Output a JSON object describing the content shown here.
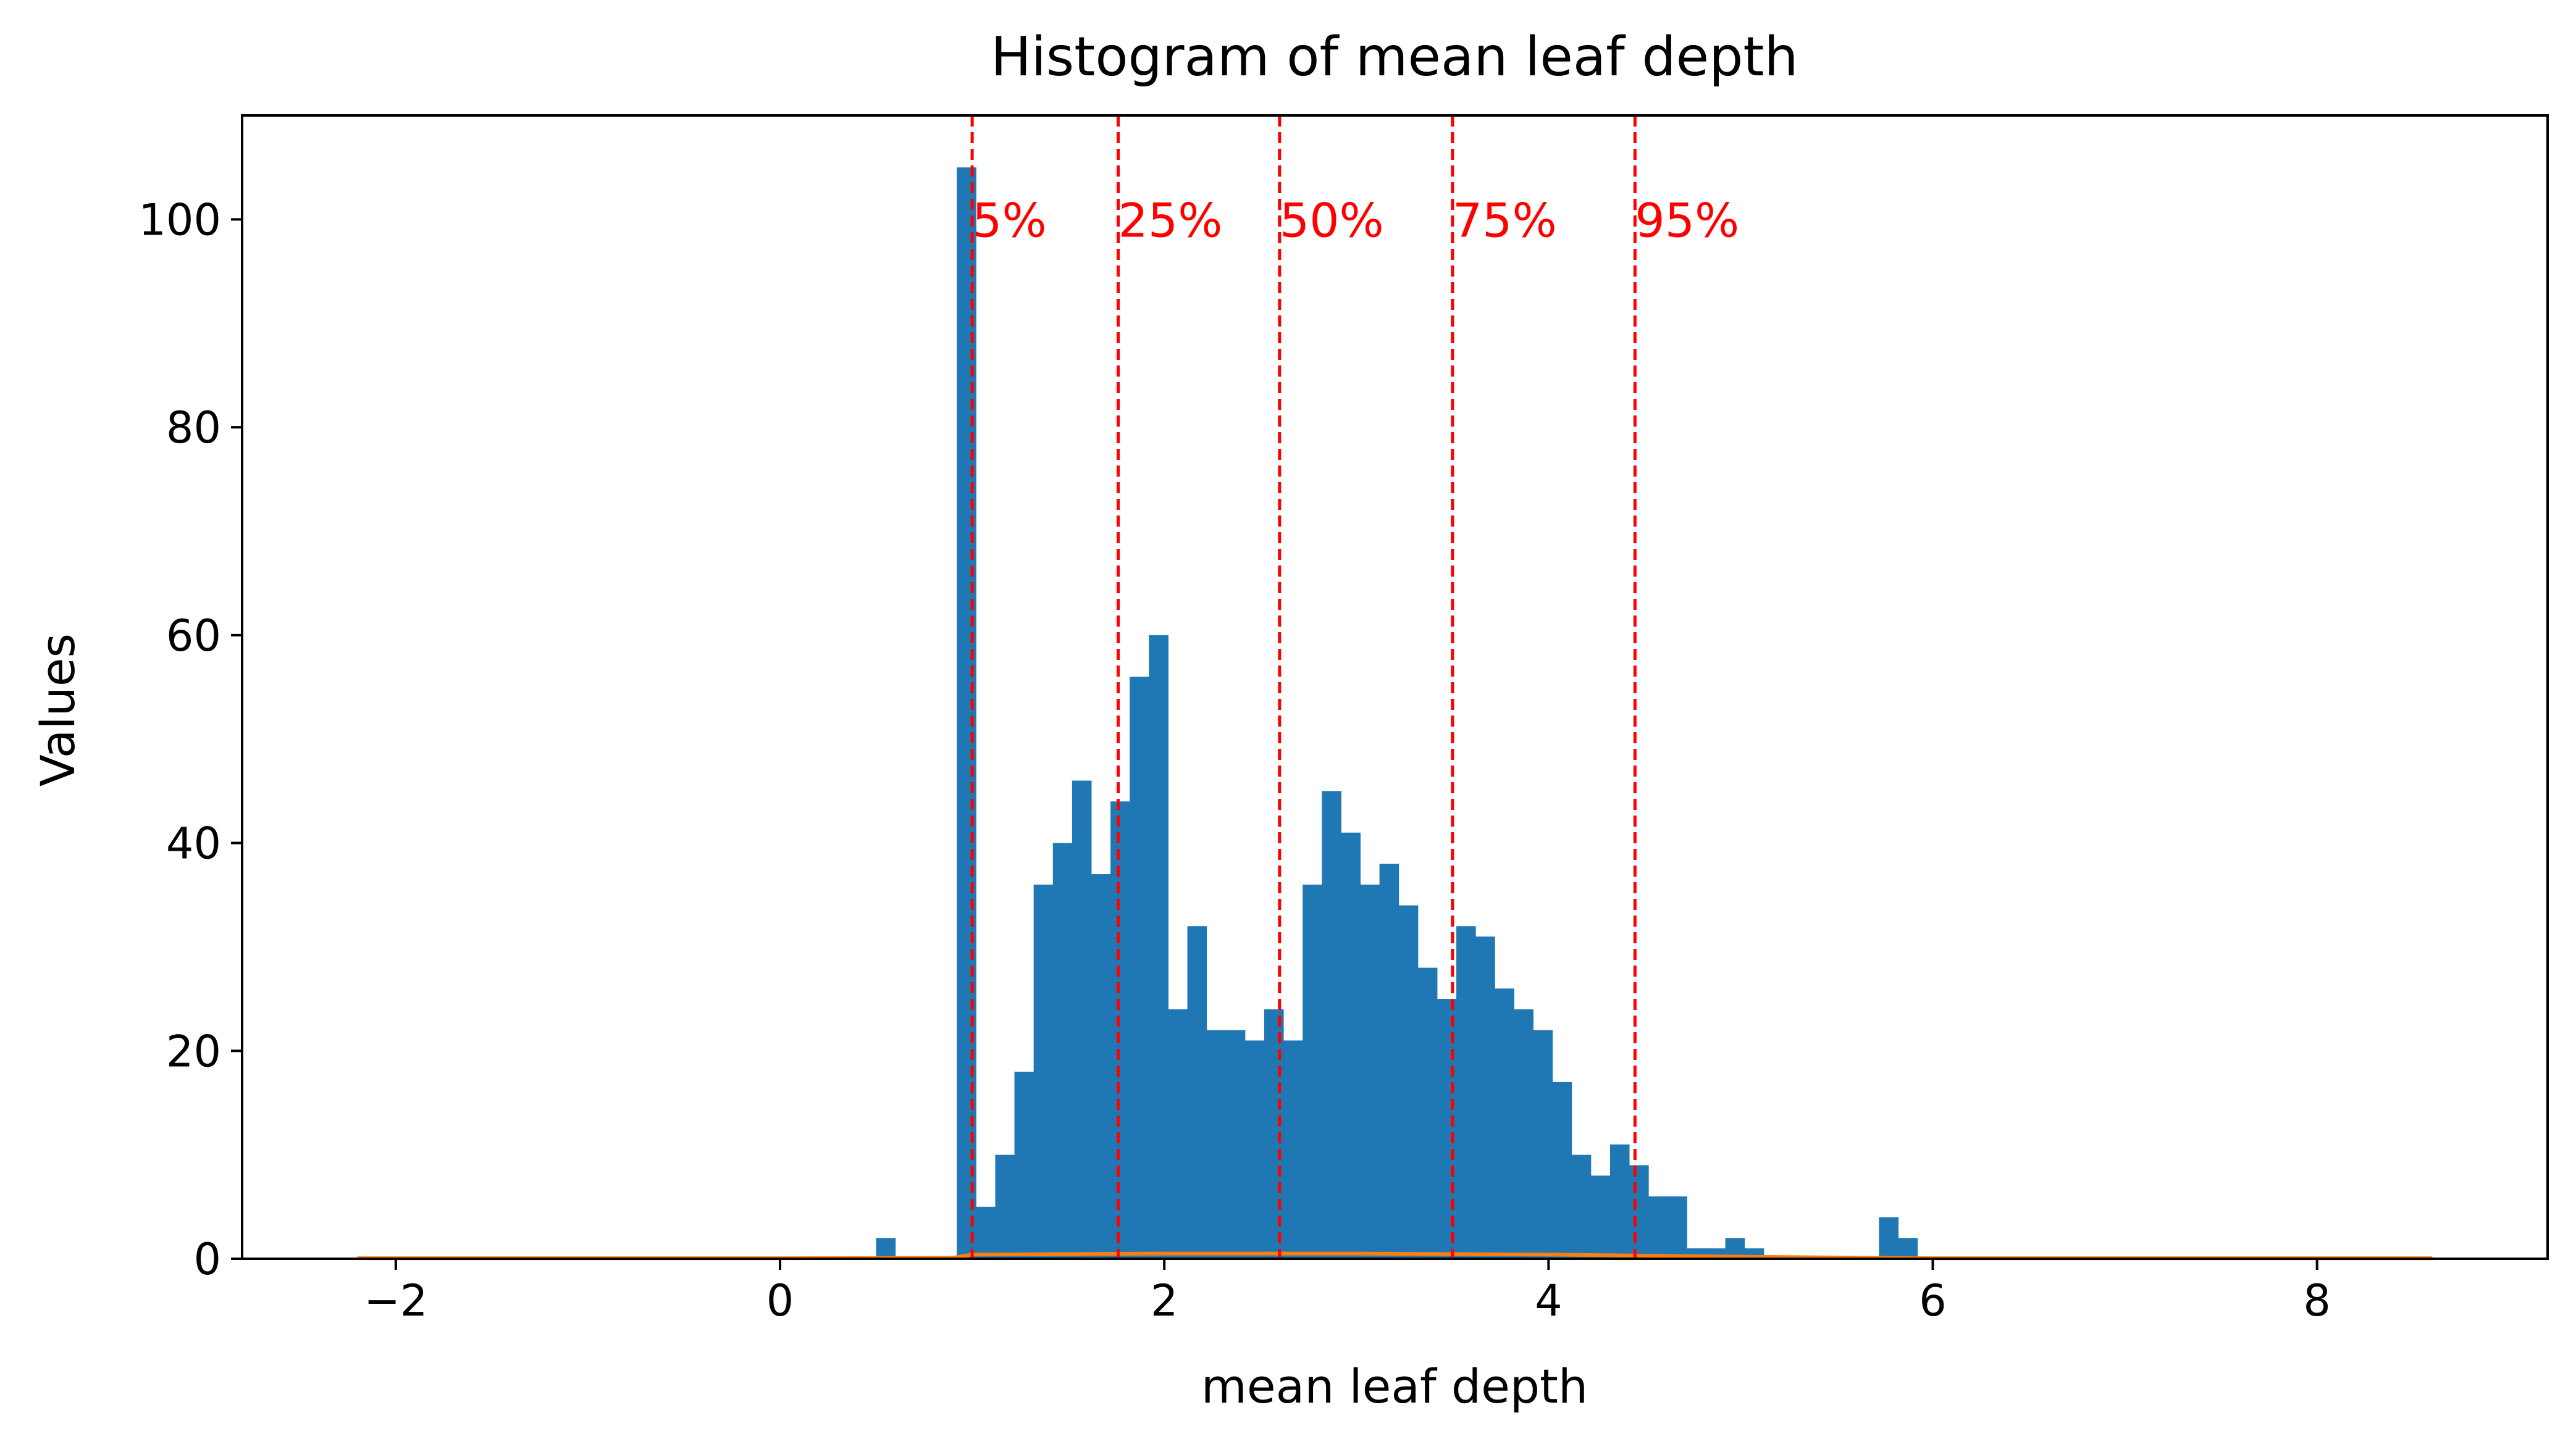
{
  "chart_data": {
    "type": "bar",
    "title": "Histogram of mean leaf depth",
    "xlabel": "mean leaf depth",
    "ylabel": "Values",
    "xlim": [
      -2.8,
      9.2
    ],
    "ylim": [
      0,
      110
    ],
    "grid": false,
    "x_ticks": [
      -2,
      0,
      2,
      4,
      6,
      8
    ],
    "x_tick_labels": [
      "−2",
      "0",
      "2",
      "4",
      "6",
      "8"
    ],
    "y_ticks": [
      0,
      20,
      40,
      60,
      80,
      100
    ],
    "y_tick_labels": [
      "0",
      "20",
      "40",
      "60",
      "80",
      "100"
    ],
    "bin_width": 0.1,
    "bar_color": "#1f77b4",
    "density_color": "#ff7f0e",
    "marker_color": "#ff0000",
    "histogram": {
      "bin_starts": [
        0.5,
        0.92,
        1.02,
        1.12,
        1.22,
        1.32,
        1.42,
        1.52,
        1.62,
        1.72,
        1.82,
        1.92,
        2.02,
        2.12,
        2.22,
        2.32,
        2.42,
        2.52,
        2.62,
        2.72,
        2.82,
        2.92,
        3.02,
        3.12,
        3.22,
        3.32,
        3.42,
        3.52,
        3.62,
        3.72,
        3.82,
        3.92,
        4.02,
        4.12,
        4.22,
        4.32,
        4.42,
        4.52,
        4.62,
        4.72,
        4.82,
        4.92,
        5.02,
        5.12,
        5.22,
        5.32,
        5.42,
        5.72,
        5.82
      ],
      "counts": [
        2,
        105,
        5,
        10,
        18,
        36,
        40,
        46,
        37,
        44,
        56,
        60,
        24,
        32,
        22,
        22,
        21,
        24,
        21,
        36,
        45,
        41,
        36,
        38,
        34,
        28,
        25,
        32,
        31,
        26,
        24,
        22,
        17,
        10,
        8,
        11,
        9,
        6,
        6,
        1,
        1,
        2,
        1,
        0,
        0,
        0,
        0,
        4,
        2
      ]
    },
    "density": {
      "x": [
        -2.2,
        0.0,
        0.9,
        1.0,
        2.0,
        3.0,
        4.0,
        5.0,
        6.0,
        8.6
      ],
      "y": [
        0.05,
        0.05,
        0.1,
        0.4,
        0.5,
        0.5,
        0.4,
        0.2,
        0.05,
        0.05
      ]
    },
    "percentiles": [
      {
        "label": "5%",
        "x": 1.0
      },
      {
        "label": "25%",
        "x": 1.76
      },
      {
        "label": "50%",
        "x": 2.6
      },
      {
        "label": "75%",
        "x": 3.5
      },
      {
        "label": "95%",
        "x": 4.45
      }
    ],
    "percentile_label_y": 100
  }
}
